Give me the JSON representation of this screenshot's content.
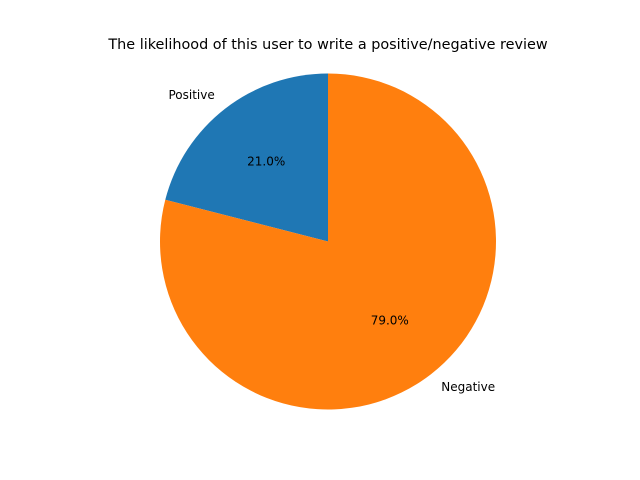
{
  "chart_data": {
    "type": "pie",
    "title": "The likelihood of this user to write a positive/negative review",
    "categories": [
      "Positive",
      "Negative"
    ],
    "values": [
      21.0,
      79.0
    ],
    "pct_labels": [
      "21.0%",
      "79.0%"
    ],
    "colors": [
      "#1f77b4",
      "#ff7f0e"
    ],
    "start_angle_deg": 90,
    "direction": "counterclockwise",
    "legend": "none"
  }
}
